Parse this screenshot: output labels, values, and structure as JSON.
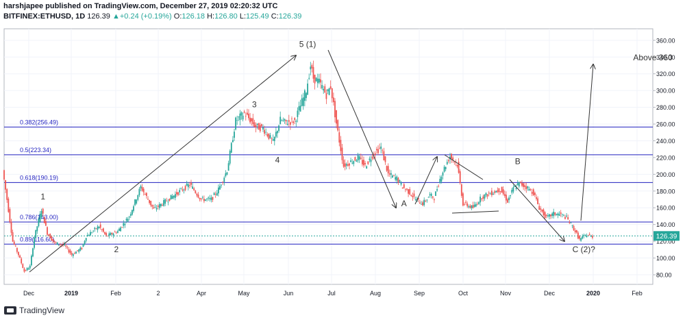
{
  "header": {
    "publisher_line": "harshjapee published on TradingView.com, December 27, 2019 02:20:32 UTC",
    "symbol": "BITFINEX:ETHUSD, 1D",
    "last": "126.39",
    "change": "+0.24 (+0.19%)",
    "o_label": "O:",
    "o_value": "126.18",
    "h_label": "H:",
    "h_value": "126.80",
    "l_label": "L:",
    "l_value": "125.49",
    "c_label": "C:",
    "c_value": "126.39"
  },
  "footer": {
    "brand": "TradingView"
  },
  "colors": {
    "up": "#26a69a",
    "down": "#ef5350",
    "level": "#1f1fbf",
    "price_tag": "#26a69a",
    "annotation": "#333333"
  },
  "chart_data": {
    "type": "candlestick",
    "title": "BITFINEX:ETHUSD, 1D",
    "ylim": [
      65,
      372
    ],
    "y_ticks": [
      "80.00",
      "100.00",
      "120.00",
      "140.00",
      "160.00",
      "180.00",
      "200.00",
      "220.00",
      "240.00",
      "260.00",
      "280.00",
      "300.00",
      "320.00",
      "340.00",
      "360.00"
    ],
    "x_ticks": [
      "Dec",
      "2019",
      "Feb",
      "2",
      "Apr",
      "May",
      "Jun",
      "Jul",
      "Aug",
      "Sep",
      "Oct",
      "Nov",
      "Dec",
      "2020",
      "Feb"
    ],
    "last_price": "126.39",
    "fib_levels": [
      {
        "label": "0.382(256.49)",
        "value": 256.49
      },
      {
        "label": "0.5(223.34)",
        "value": 223.34
      },
      {
        "label": "0.618(190.19)",
        "value": 190.19
      },
      {
        "label": "0.786(143.00)",
        "value": 143.0
      },
      {
        "label": "0.89(116.60)",
        "value": 116.6
      }
    ],
    "wave_labels": [
      {
        "text": "1",
        "x": 27,
        "y": 170
      },
      {
        "text": "2",
        "x": 78,
        "y": 107
      },
      {
        "text": "3",
        "x": 174,
        "y": 280
      },
      {
        "text": "4",
        "x": 190,
        "y": 214
      },
      {
        "text": "5 (1)",
        "x": 211,
        "y": 352
      },
      {
        "text": "A",
        "x": 278,
        "y": 162
      },
      {
        "text": "B",
        "x": 357,
        "y": 212
      },
      {
        "text": "C (2)?",
        "x": 403,
        "y": 107
      },
      {
        "text": "Above 360",
        "x": 451,
        "y": 336
      }
    ],
    "candles_path": [
      [
        0,
        205
      ],
      [
        3,
        170
      ],
      [
        7,
        120
      ],
      [
        11,
        104
      ],
      [
        15,
        84
      ],
      [
        19,
        90
      ],
      [
        22,
        125
      ],
      [
        27,
        158
      ],
      [
        31,
        130
      ],
      [
        36,
        118
      ],
      [
        43,
        115
      ],
      [
        48,
        104
      ],
      [
        55,
        112
      ],
      [
        58,
        126
      ],
      [
        67,
        138
      ],
      [
        72,
        126
      ],
      [
        80,
        132
      ],
      [
        88,
        150
      ],
      [
        96,
        185
      ],
      [
        105,
        158
      ],
      [
        115,
        170
      ],
      [
        130,
        188
      ],
      [
        138,
        170
      ],
      [
        145,
        170
      ],
      [
        150,
        182
      ],
      [
        156,
        205
      ],
      [
        162,
        264
      ],
      [
        168,
        273
      ],
      [
        176,
        257
      ],
      [
        181,
        255
      ],
      [
        188,
        238
      ],
      [
        193,
        265
      ],
      [
        196,
        262
      ],
      [
        203,
        264
      ],
      [
        207,
        282
      ],
      [
        211,
        300
      ],
      [
        214,
        330
      ],
      [
        216,
        315
      ],
      [
        220,
        310
      ],
      [
        225,
        295
      ],
      [
        228,
        305
      ],
      [
        233,
        250
      ],
      [
        237,
        210
      ],
      [
        242,
        215
      ],
      [
        247,
        220
      ],
      [
        252,
        210
      ],
      [
        258,
        225
      ],
      [
        263,
        232
      ],
      [
        268,
        200
      ],
      [
        274,
        195
      ],
      [
        278,
        185
      ],
      [
        283,
        178
      ],
      [
        287,
        170
      ],
      [
        292,
        165
      ],
      [
        297,
        175
      ],
      [
        300,
        172
      ],
      [
        305,
        200
      ],
      [
        311,
        222
      ],
      [
        316,
        212
      ],
      [
        320,
        165
      ],
      [
        327,
        160
      ],
      [
        333,
        173
      ],
      [
        340,
        178
      ],
      [
        346,
        182
      ],
      [
        351,
        168
      ],
      [
        355,
        183
      ],
      [
        359,
        189
      ],
      [
        364,
        185
      ],
      [
        369,
        178
      ],
      [
        373,
        160
      ],
      [
        378,
        148
      ],
      [
        383,
        153
      ],
      [
        388,
        152
      ],
      [
        392,
        148
      ],
      [
        397,
        135
      ],
      [
        401,
        122
      ],
      [
        406,
        128
      ],
      [
        409,
        126
      ]
    ]
  }
}
